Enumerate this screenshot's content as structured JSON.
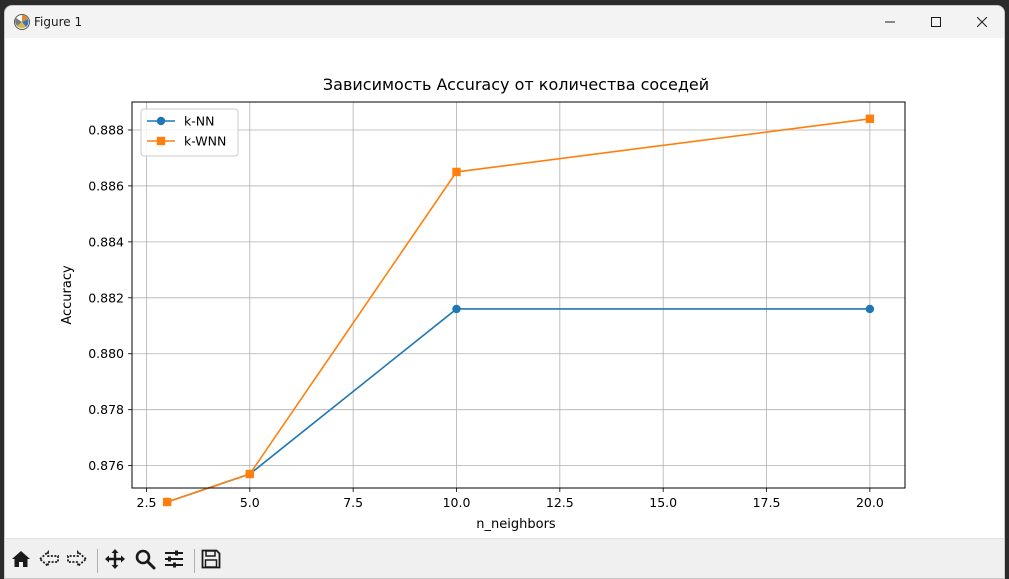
{
  "window": {
    "title": "Figure 1",
    "controls": {
      "minimize_icon": "minimize-icon",
      "maximize_icon": "maximize-icon",
      "close_icon": "close-icon"
    }
  },
  "toolbar": {
    "buttons": [
      {
        "icon": "home-icon"
      },
      {
        "icon": "back-arrow-icon"
      },
      {
        "icon": "forward-arrow-icon"
      },
      {
        "icon": "pan-icon"
      },
      {
        "icon": "zoom-icon"
      },
      {
        "icon": "configure-subplots-icon"
      },
      {
        "icon": "save-icon"
      }
    ]
  },
  "chart_data": {
    "type": "line",
    "title": "Зависимость Accuracy от количества соседей",
    "xlabel": "n_neighbors",
    "ylabel": "Accuracy",
    "x": [
      3,
      5,
      10,
      20
    ],
    "xticks": [
      "2.5",
      "5.0",
      "7.5",
      "10.0",
      "12.5",
      "15.0",
      "17.5",
      "20.0"
    ],
    "yticks": [
      "0.876",
      "0.878",
      "0.880",
      "0.882",
      "0.884",
      "0.886",
      "0.888"
    ],
    "xlim": [
      2.15,
      20.85
    ],
    "ylim": [
      0.8752,
      0.889
    ],
    "grid": true,
    "legend_position": "upper-left",
    "series": [
      {
        "name": "k-NN",
        "marker": "circle",
        "color": "#1f77b4",
        "values": [
          0.8747,
          0.8757,
          0.8816,
          0.8816
        ]
      },
      {
        "name": "k-WNN",
        "marker": "square",
        "color": "#ff7f0e",
        "values": [
          0.8747,
          0.8757,
          0.8865,
          0.8884
        ]
      }
    ]
  }
}
